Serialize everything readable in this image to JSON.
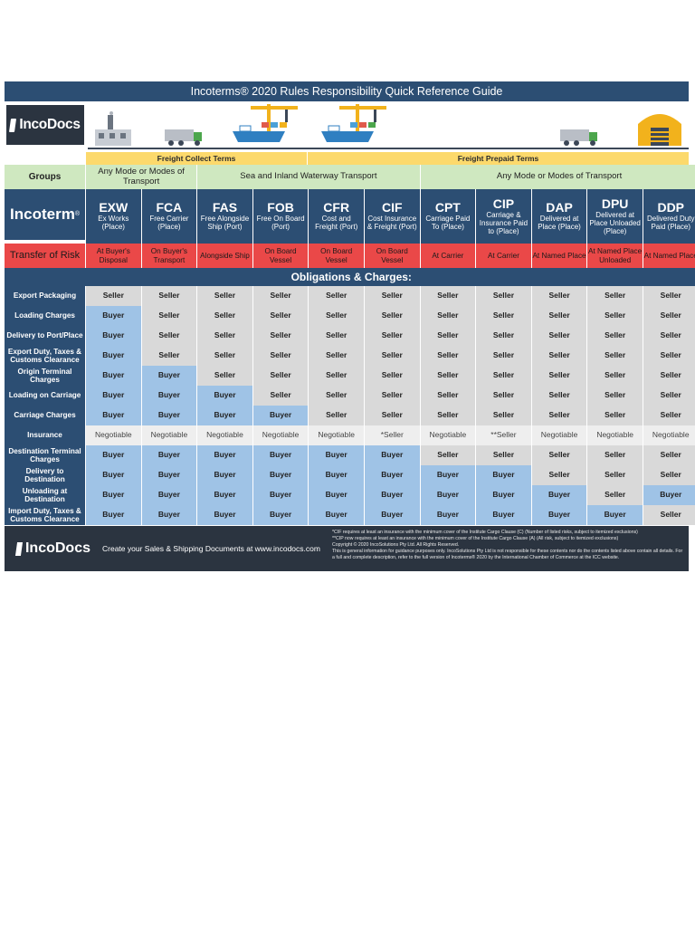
{
  "title": "Incoterms® 2020 Rules Responsibility Quick Reference Guide",
  "brand": "IncoDocs",
  "term_types": {
    "collect": "Freight Collect Terms",
    "prepaid": "Freight Prepaid Terms"
  },
  "groups": {
    "label": "Groups",
    "any_mode_collect": "Any Mode or Modes of Transport",
    "sea": "Sea and Inland Waterway Transport",
    "any_mode_prepaid": "Any Mode or Modes of Transport"
  },
  "incoterm_label": "Incoterm",
  "incoterms": [
    {
      "code": "EXW",
      "name": "Ex Works (Place)"
    },
    {
      "code": "FCA",
      "name": "Free Carrier (Place)"
    },
    {
      "code": "FAS",
      "name": "Free Alongside Ship (Port)"
    },
    {
      "code": "FOB",
      "name": "Free On Board (Port)"
    },
    {
      "code": "CFR",
      "name": "Cost and Freight (Port)"
    },
    {
      "code": "CIF",
      "name": "Cost Insurance & Freight (Port)"
    },
    {
      "code": "CPT",
      "name": "Carriage Paid To (Place)"
    },
    {
      "code": "CIP",
      "name": "Carriage & Insurance Paid to (Place)"
    },
    {
      "code": "DAP",
      "name": "Delivered at Place (Place)"
    },
    {
      "code": "DPU",
      "name": "Delivered at Place Unloaded (Place)"
    },
    {
      "code": "DDP",
      "name": "Delivered Duty Paid (Place)"
    }
  ],
  "risk_label": "Transfer of Risk",
  "risk": [
    "At Buyer's Disposal",
    "On Buyer's Transport",
    "Alongside Ship",
    "On Board Vessel",
    "On Board Vessel",
    "On Board Vessel",
    "At Carrier",
    "At Carrier",
    "At Named Place",
    "At Named Place Unloaded",
    "At Named Place"
  ],
  "obligations_title": "Obligations & Charges:",
  "obligations": [
    {
      "label": "Export Packaging",
      "values": [
        "Seller",
        "Seller",
        "Seller",
        "Seller",
        "Seller",
        "Seller",
        "Seller",
        "Seller",
        "Seller",
        "Seller",
        "Seller"
      ]
    },
    {
      "label": "Loading Charges",
      "values": [
        "Buyer",
        "Seller",
        "Seller",
        "Seller",
        "Seller",
        "Seller",
        "Seller",
        "Seller",
        "Seller",
        "Seller",
        "Seller"
      ]
    },
    {
      "label": "Delivery to Port/Place",
      "values": [
        "Buyer",
        "Seller",
        "Seller",
        "Seller",
        "Seller",
        "Seller",
        "Seller",
        "Seller",
        "Seller",
        "Seller",
        "Seller"
      ]
    },
    {
      "label": "Export Duty, Taxes & Customs Clearance",
      "values": [
        "Buyer",
        "Seller",
        "Seller",
        "Seller",
        "Seller",
        "Seller",
        "Seller",
        "Seller",
        "Seller",
        "Seller",
        "Seller"
      ]
    },
    {
      "label": "Origin Terminal Charges",
      "values": [
        "Buyer",
        "Buyer",
        "Seller",
        "Seller",
        "Seller",
        "Seller",
        "Seller",
        "Seller",
        "Seller",
        "Seller",
        "Seller"
      ]
    },
    {
      "label": "Loading on Carriage",
      "values": [
        "Buyer",
        "Buyer",
        "Buyer",
        "Seller",
        "Seller",
        "Seller",
        "Seller",
        "Seller",
        "Seller",
        "Seller",
        "Seller"
      ]
    },
    {
      "label": "Carriage Charges",
      "values": [
        "Buyer",
        "Buyer",
        "Buyer",
        "Buyer",
        "Seller",
        "Seller",
        "Seller",
        "Seller",
        "Seller",
        "Seller",
        "Seller"
      ]
    },
    {
      "label": "Insurance",
      "values": [
        "Negotiable",
        "Negotiable",
        "Negotiable",
        "Negotiable",
        "Negotiable",
        "*Seller",
        "Negotiable",
        "**Seller",
        "Negotiable",
        "Negotiable",
        "Negotiable"
      ]
    },
    {
      "label": "Destination Terminal Charges",
      "values": [
        "Buyer",
        "Buyer",
        "Buyer",
        "Buyer",
        "Buyer",
        "Buyer",
        "Seller",
        "Seller",
        "Seller",
        "Seller",
        "Seller"
      ]
    },
    {
      "label": "Delivery to Destination",
      "values": [
        "Buyer",
        "Buyer",
        "Buyer",
        "Buyer",
        "Buyer",
        "Buyer",
        "Buyer",
        "Buyer",
        "Seller",
        "Seller",
        "Seller"
      ]
    },
    {
      "label": "Unloading at Destination",
      "values": [
        "Buyer",
        "Buyer",
        "Buyer",
        "Buyer",
        "Buyer",
        "Buyer",
        "Buyer",
        "Buyer",
        "Buyer",
        "Seller",
        "Buyer"
      ]
    },
    {
      "label": "Import Duty, Taxes & Customs Clearance",
      "values": [
        "Buyer",
        "Buyer",
        "Buyer",
        "Buyer",
        "Buyer",
        "Buyer",
        "Buyer",
        "Buyer",
        "Buyer",
        "Buyer",
        "Seller"
      ]
    }
  ],
  "footer": {
    "cta": "Create your Sales & Shipping Documents at www.incodocs.com",
    "notes": [
      "*CIF requires at least an insurance with the minimum cover of the Institute Cargo Clause (C) (Number of listed risks, subject to itemized exclusions)",
      "**CIP now requires at least an insurance with the minimum cover of the Institute Cargo Clause (A) (All risk, subject to itemized exclusions)",
      "Copyright © 2020 IncoSolutions Pty Ltd. All Rights Reserved.",
      "This is general information for guidance purposes only. IncoSolutions Pty Ltd is not responsible for these contents nor do the contents listed above contain all details. For a full and complete description, refer to the full version of Incoterms® 2020 by the International Chamber of Commerce at the ICC website."
    ]
  },
  "colors": {
    "header_navy": "#2c4e73",
    "terms_yellow": "#fcd96c",
    "groups_green": "#cfe8c0",
    "risk_red": "#ea4848",
    "seller_grey": "#d9d9d9",
    "buyer_blue": "#9fc3e6",
    "footer_dark": "#2b3440"
  }
}
